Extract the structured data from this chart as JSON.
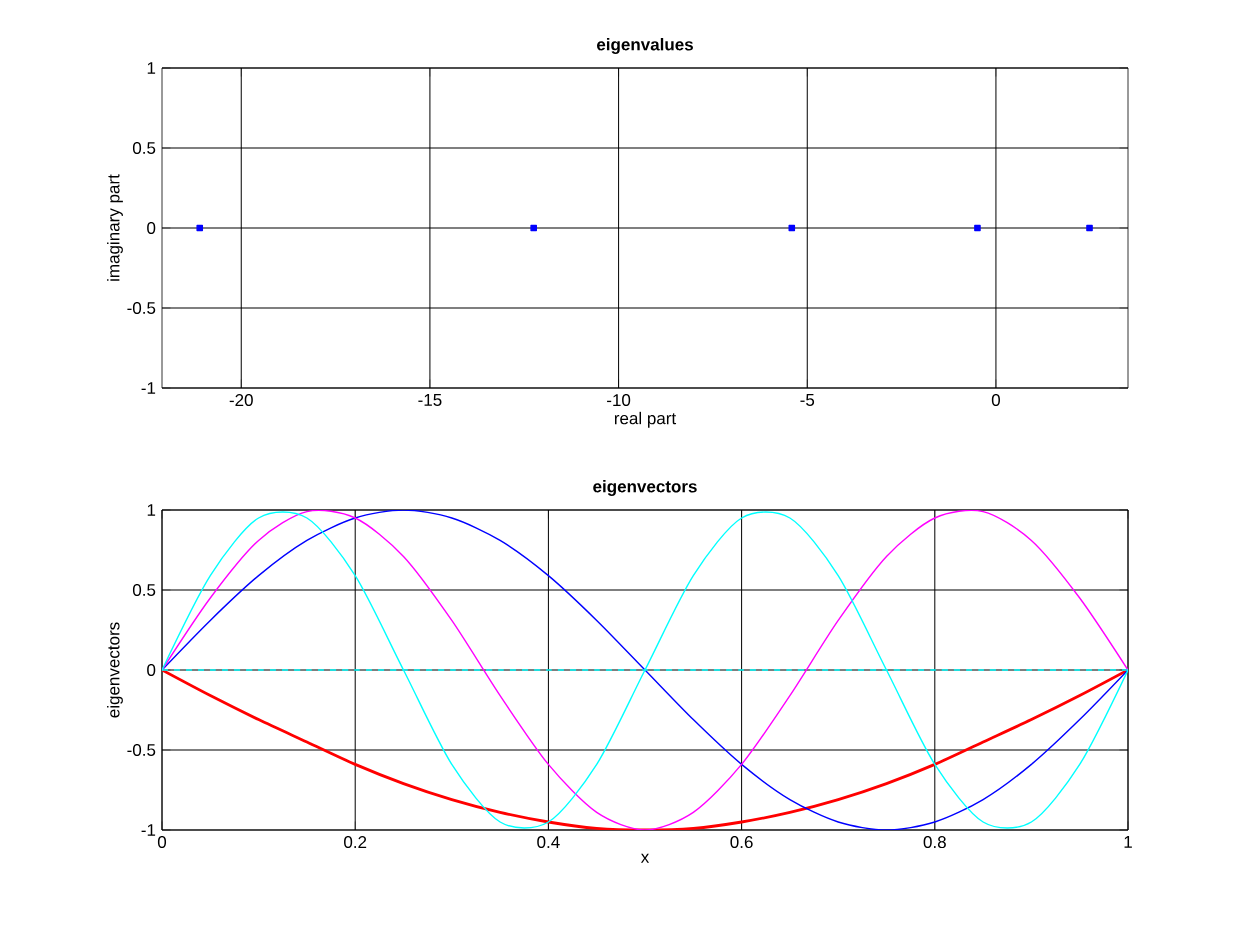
{
  "chart_data": [
    {
      "type": "scatter",
      "title": "eigenvalues",
      "xlabel": "real part",
      "ylabel": "imaginary part",
      "x": [
        -21.1,
        -12.25,
        -5.41,
        -0.49,
        2.48
      ],
      "xlim": [
        -22.1,
        3.5
      ],
      "ylim": [
        -1,
        1
      ],
      "xticks": [
        -20,
        -15,
        -10,
        -5,
        0
      ],
      "yticks": [
        -1,
        -0.5,
        0,
        0.5,
        1
      ],
      "grid": true,
      "marker": "square",
      "series": [
        {
          "color": "#0000ff",
          "values": [
            0,
            0,
            0,
            0,
            0
          ]
        }
      ]
    },
    {
      "type": "line",
      "title": "eigenvectors",
      "xlabel": "x",
      "ylabel": "eigenvectors",
      "x": [
        0,
        0.05,
        0.1,
        0.15,
        0.2,
        0.25,
        0.3,
        0.35,
        0.4,
        0.45,
        0.5,
        0.55,
        0.6,
        0.65,
        0.7,
        0.75,
        0.8,
        0.85,
        0.9,
        0.95,
        1
      ],
      "xlim": [
        0,
        1
      ],
      "ylim": [
        -1,
        1
      ],
      "xticks": [
        0,
        0.2,
        0.4,
        0.6,
        0.8,
        1
      ],
      "yticks": [
        -1,
        -0.5,
        0,
        0.5,
        1
      ],
      "grid": true,
      "marker": "none",
      "series": [
        {
          "color": "#ff0000",
          "values": [
            0,
            -0.16,
            -0.31,
            -0.45,
            -0.59,
            -0.71,
            -0.81,
            -0.89,
            -0.95,
            -0.99,
            -1,
            -0.99,
            -0.95,
            -0.89,
            -0.81,
            -0.71,
            -0.59,
            -0.45,
            -0.31,
            -0.16,
            0
          ]
        },
        {
          "color": "#0000ff",
          "values": [
            0,
            0.31,
            0.59,
            0.81,
            0.95,
            1,
            0.95,
            0.81,
            0.59,
            0.31,
            0,
            -0.31,
            -0.59,
            -0.81,
            -0.95,
            -1,
            -0.95,
            -0.81,
            -0.59,
            -0.31,
            0
          ]
        },
        {
          "color": "#ff00ff",
          "values": [
            0,
            0.45,
            0.81,
            0.99,
            0.95,
            0.71,
            0.31,
            -0.16,
            -0.59,
            -0.89,
            -1,
            -0.89,
            -0.59,
            -0.16,
            0.31,
            0.71,
            0.95,
            0.99,
            0.81,
            0.45,
            0
          ]
        },
        {
          "color": "#00ffff",
          "values": [
            0,
            0.59,
            0.95,
            0.95,
            0.59,
            0,
            -0.59,
            -0.95,
            -0.95,
            -0.59,
            0,
            0.59,
            0.95,
            0.95,
            0.59,
            0,
            -0.59,
            -0.95,
            -0.95,
            -0.59,
            0
          ]
        },
        {
          "color": "#00ffff",
          "line_style": "dashed",
          "values": [
            0,
            0,
            0,
            0,
            0,
            0,
            0,
            0,
            0,
            0,
            0,
            0,
            0,
            0,
            0,
            0,
            0,
            0,
            0,
            0,
            0
          ]
        }
      ]
    }
  ]
}
